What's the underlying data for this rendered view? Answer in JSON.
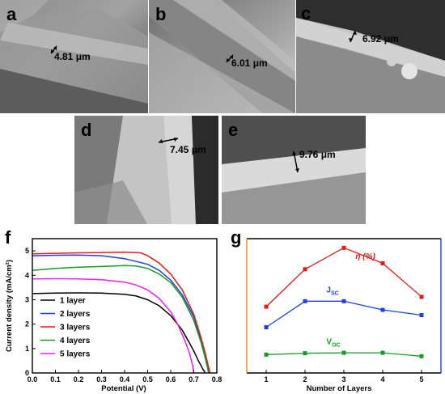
{
  "sem_panels": [
    {
      "letter": "a",
      "measure": "4.81 μm"
    },
    {
      "letter": "b",
      "measure": "6.01 μm"
    },
    {
      "letter": "c",
      "measure": "6.92 μm"
    },
    {
      "letter": "d",
      "measure": "7.45 μm"
    },
    {
      "letter": "e",
      "measure": "9.76 μm"
    }
  ],
  "chart_data": [
    {
      "panel": "f",
      "type": "line",
      "xlabel": "Potential (V)",
      "ylabel": "Current density (mA/cm²)",
      "xlim": [
        0.0,
        0.8
      ],
      "ylim": [
        0,
        5.5
      ],
      "xticks": [
        "0.0",
        "0.1",
        "0.2",
        "0.3",
        "0.4",
        "0.5",
        "0.6",
        "0.7",
        "0.8"
      ],
      "yticks": [
        "0",
        "1",
        "2",
        "3",
        "4",
        "5"
      ],
      "legend_position": "bottom-left",
      "series": [
        {
          "name": "1 layer",
          "color": "#000000",
          "x": [
            0,
            0.1,
            0.2,
            0.3,
            0.4,
            0.45,
            0.5,
            0.55,
            0.6,
            0.65,
            0.68,
            0.7,
            0.72,
            0.74,
            0.75
          ],
          "y": [
            3.25,
            3.27,
            3.28,
            3.27,
            3.22,
            3.15,
            3.0,
            2.75,
            2.35,
            1.75,
            1.25,
            0.9,
            0.5,
            0.15,
            0
          ]
        },
        {
          "name": "2 layers",
          "color": "#1f3fe0",
          "x": [
            0,
            0.1,
            0.2,
            0.3,
            0.4,
            0.5,
            0.55,
            0.6,
            0.65,
            0.7,
            0.73,
            0.75,
            0.765
          ],
          "y": [
            4.8,
            4.82,
            4.83,
            4.8,
            4.68,
            4.45,
            4.2,
            3.8,
            3.2,
            2.3,
            1.4,
            0.6,
            0
          ]
        },
        {
          "name": "3 layers",
          "color": "#e31b1b",
          "x": [
            0,
            0.1,
            0.2,
            0.3,
            0.4,
            0.47,
            0.5,
            0.55,
            0.6,
            0.65,
            0.7,
            0.73,
            0.75,
            0.77
          ],
          "y": [
            4.88,
            4.9,
            4.92,
            4.93,
            4.95,
            4.92,
            4.8,
            4.5,
            4.05,
            3.4,
            2.4,
            1.5,
            0.8,
            0
          ]
        },
        {
          "name": "4 layers",
          "color": "#179a2a",
          "x": [
            0,
            0.1,
            0.2,
            0.3,
            0.4,
            0.45,
            0.5,
            0.55,
            0.6,
            0.65,
            0.7,
            0.73,
            0.75,
            0.765
          ],
          "y": [
            4.2,
            4.28,
            4.33,
            4.36,
            4.4,
            4.38,
            4.28,
            4.05,
            3.7,
            3.1,
            2.15,
            1.3,
            0.6,
            0
          ]
        },
        {
          "name": "5 layers",
          "color": "#ef1ef0",
          "x": [
            0,
            0.1,
            0.2,
            0.3,
            0.4,
            0.45,
            0.5,
            0.55,
            0.6,
            0.63,
            0.66,
            0.68,
            0.695,
            0.7
          ],
          "y": [
            3.85,
            3.86,
            3.85,
            3.82,
            3.72,
            3.6,
            3.4,
            3.05,
            2.5,
            2.0,
            1.35,
            0.85,
            0.3,
            0
          ]
        }
      ]
    },
    {
      "panel": "g",
      "type": "line",
      "xlabel": "Number of Layers",
      "ylabel": "",
      "xlim": [
        0.5,
        5.5
      ],
      "xticks": [
        "1",
        "2",
        "3",
        "4",
        "5"
      ],
      "series": [
        {
          "name": "η (%)",
          "color": "#e31b1b",
          "x": [
            1,
            2,
            3,
            4,
            5
          ],
          "y": [
            2.62,
            4.26,
            5.2,
            4.52,
            3.05
          ]
        },
        {
          "name": "J",
          "subscript": "SC",
          "color": "#1f3fe0",
          "x": [
            1,
            2,
            3,
            4,
            5
          ],
          "y": [
            1.72,
            2.86,
            2.86,
            2.48,
            2.25
          ]
        },
        {
          "name": "V",
          "subscript": "OC",
          "color": "#179a2a",
          "x": [
            1,
            2,
            3,
            4,
            5
          ],
          "y": [
            0.52,
            0.58,
            0.6,
            0.6,
            0.45
          ]
        }
      ]
    }
  ]
}
